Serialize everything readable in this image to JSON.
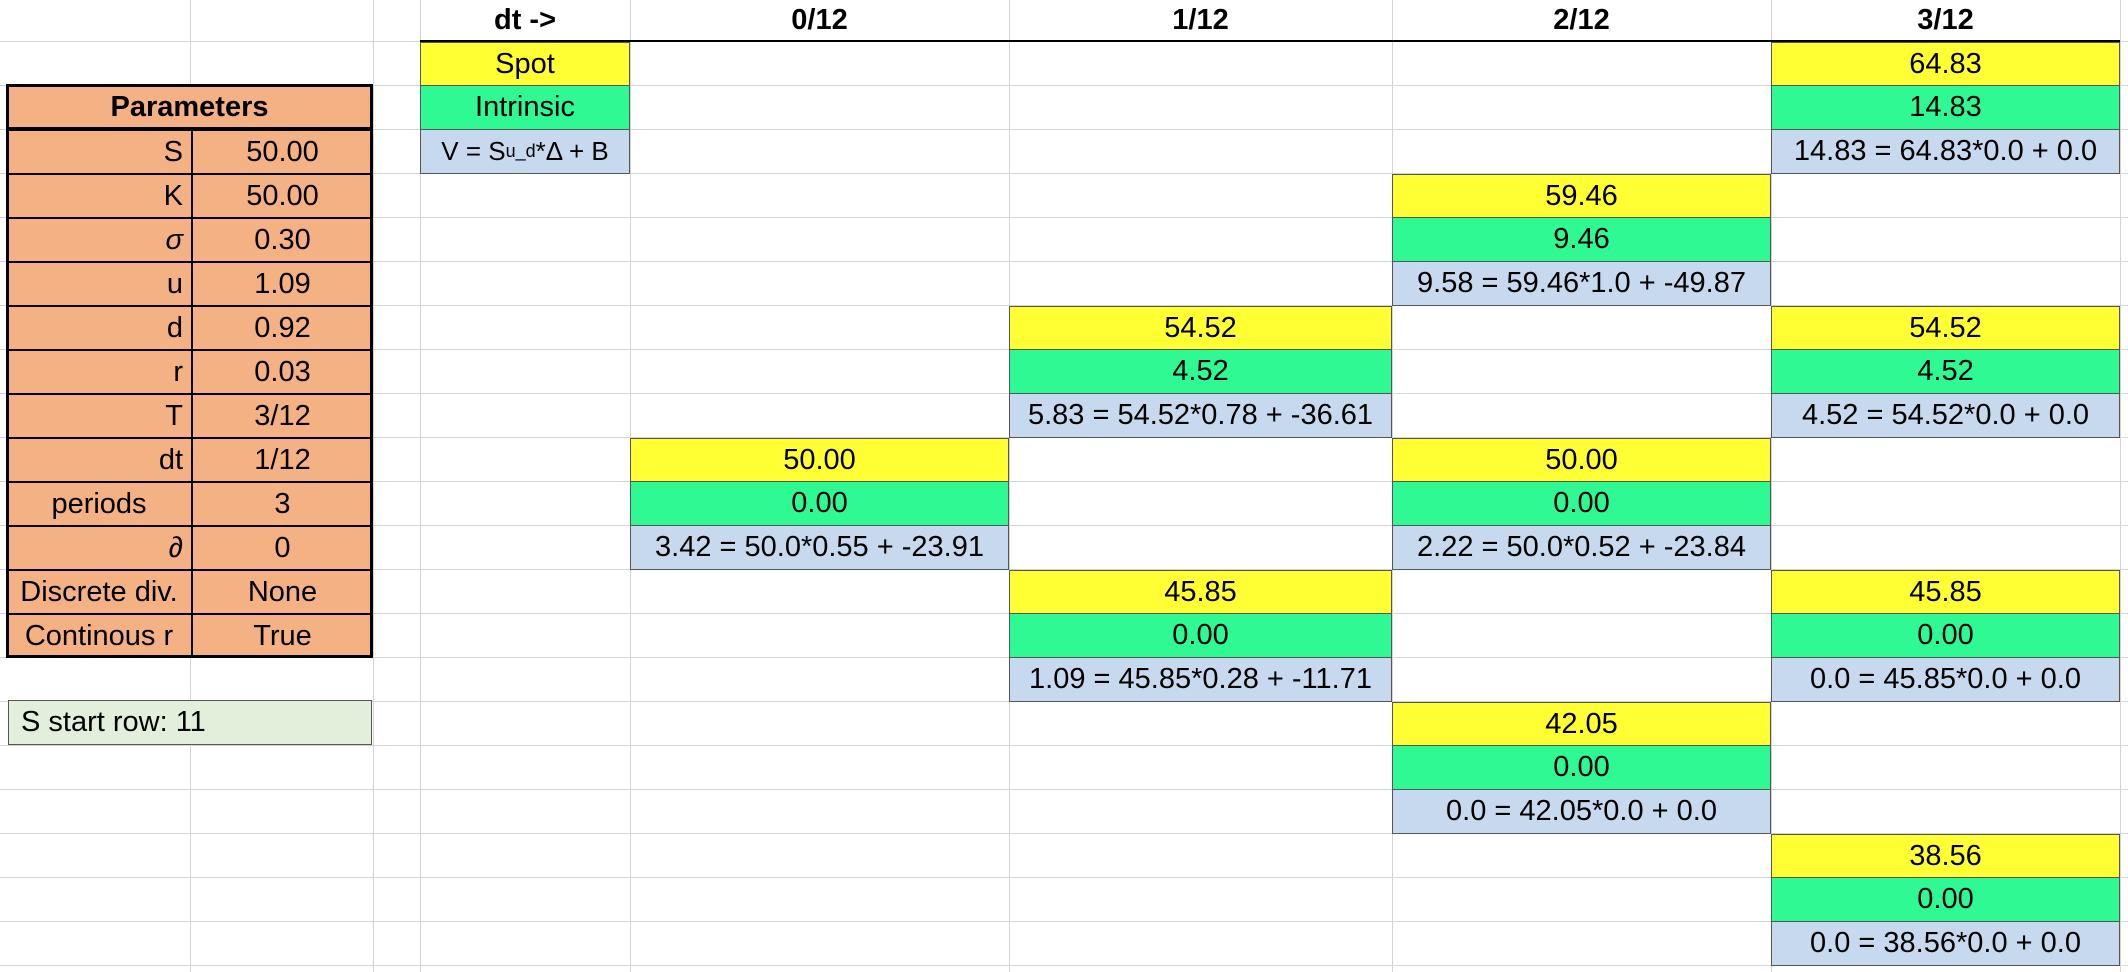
{
  "header": {
    "dt_label": "dt ->",
    "periods": [
      "0/12",
      "1/12",
      "2/12",
      "3/12"
    ]
  },
  "legend": {
    "spot": "Spot",
    "intrinsic": "Intrinsic",
    "formula_prefix": "V = S",
    "formula_sub": "u_d",
    "formula_suffix": "*Δ + B"
  },
  "parameters": {
    "title": "Parameters",
    "rows": [
      {
        "label": "S",
        "value": "50.00"
      },
      {
        "label": "K",
        "value": "50.00"
      },
      {
        "label": "σ",
        "value": "0.30"
      },
      {
        "label": "u",
        "value": "1.09"
      },
      {
        "label": "d",
        "value": "0.92"
      },
      {
        "label": "r",
        "value": "0.03"
      },
      {
        "label": "T",
        "value": "3/12"
      },
      {
        "label": "dt",
        "value": "1/12"
      },
      {
        "label": "periods",
        "value": "3"
      },
      {
        "label": "∂",
        "value": "0"
      },
      {
        "label": "Discrete div.",
        "value": "None"
      },
      {
        "label": "Continous r",
        "value": "True"
      }
    ]
  },
  "status": {
    "s_start_row": "S start row:  11"
  },
  "tree": {
    "nodes": [
      {
        "spot": "64.83",
        "intrinsic": "14.83",
        "value": "14.83 = 64.83*0.0 + 0.0"
      },
      {
        "spot": "59.46",
        "intrinsic": "9.46",
        "value": "9.58 = 59.46*1.0 + -49.87"
      },
      {
        "spot": "54.52",
        "intrinsic": "4.52",
        "value": "5.83 = 54.52*0.78 + -36.61"
      },
      {
        "spot": "54.52",
        "intrinsic": "4.52",
        "value": "4.52 = 54.52*0.0 + 0.0"
      },
      {
        "spot": "50.00",
        "intrinsic": "0.00",
        "value": "3.42 = 50.0*0.55 + -23.91"
      },
      {
        "spot": "50.00",
        "intrinsic": "0.00",
        "value": "2.22 = 50.0*0.52 + -23.84"
      },
      {
        "spot": "45.85",
        "intrinsic": "0.00",
        "value": "1.09 = 45.85*0.28 + -11.71"
      },
      {
        "spot": "45.85",
        "intrinsic": "0.00",
        "value": "0.0 = 45.85*0.0 + 0.0"
      },
      {
        "spot": "42.05",
        "intrinsic": "0.00",
        "value": "0.0 = 42.05*0.0 + 0.0"
      },
      {
        "spot": "38.56",
        "intrinsic": "0.00",
        "value": "0.0 = 38.56*0.0 + 0.0"
      }
    ]
  },
  "colors": {
    "spot": "#ffff33",
    "intrinsic": "#2ef993",
    "value": "#c6d9ee",
    "parameters": "#f4b183",
    "note": "#e2efda"
  }
}
